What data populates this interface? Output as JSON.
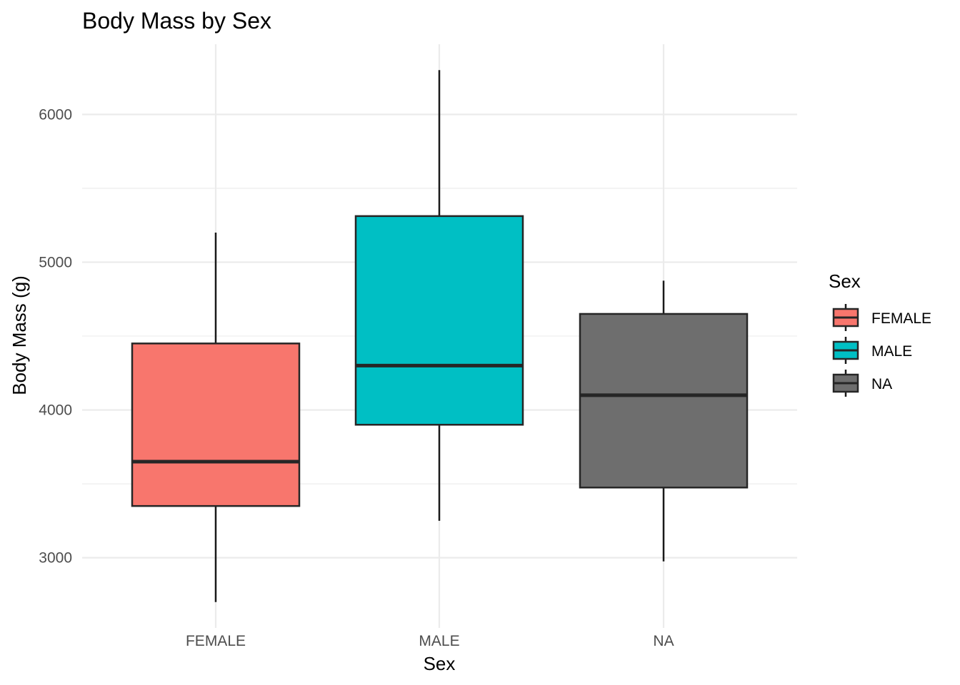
{
  "chart_data": {
    "type": "box",
    "title": "Body Mass by Sex",
    "xlabel": "Sex",
    "ylabel": "Body Mass (g)",
    "ylim": [
      2525,
      6475
    ],
    "y_ticks": [
      3000,
      4000,
      5000,
      6000
    ],
    "y_tick_labels": [
      "3000",
      "4000",
      "5000",
      "6000"
    ],
    "grid": true,
    "categories": [
      "FEMALE",
      "MALE",
      "NA"
    ],
    "boxes": [
      {
        "category": "FEMALE",
        "min": 2700,
        "q1": 3350,
        "median": 3650,
        "q3": 4450,
        "max": 5200,
        "color": "#F8766D"
      },
      {
        "category": "MALE",
        "min": 3250,
        "q1": 3900,
        "median": 4300,
        "q3": 5312,
        "max": 6300,
        "color": "#00BFC4"
      },
      {
        "category": "NA",
        "min": 2975,
        "q1": 3475,
        "median": 4100,
        "q3": 4650,
        "max": 4875,
        "color": "#6E6E6E"
      }
    ],
    "legend": {
      "title": "Sex",
      "position": "right",
      "entries": [
        {
          "label": "FEMALE",
          "color": "#F8766D"
        },
        {
          "label": "MALE",
          "color": "#00BFC4"
        },
        {
          "label": "NA",
          "color": "#6E6E6E"
        }
      ]
    }
  }
}
